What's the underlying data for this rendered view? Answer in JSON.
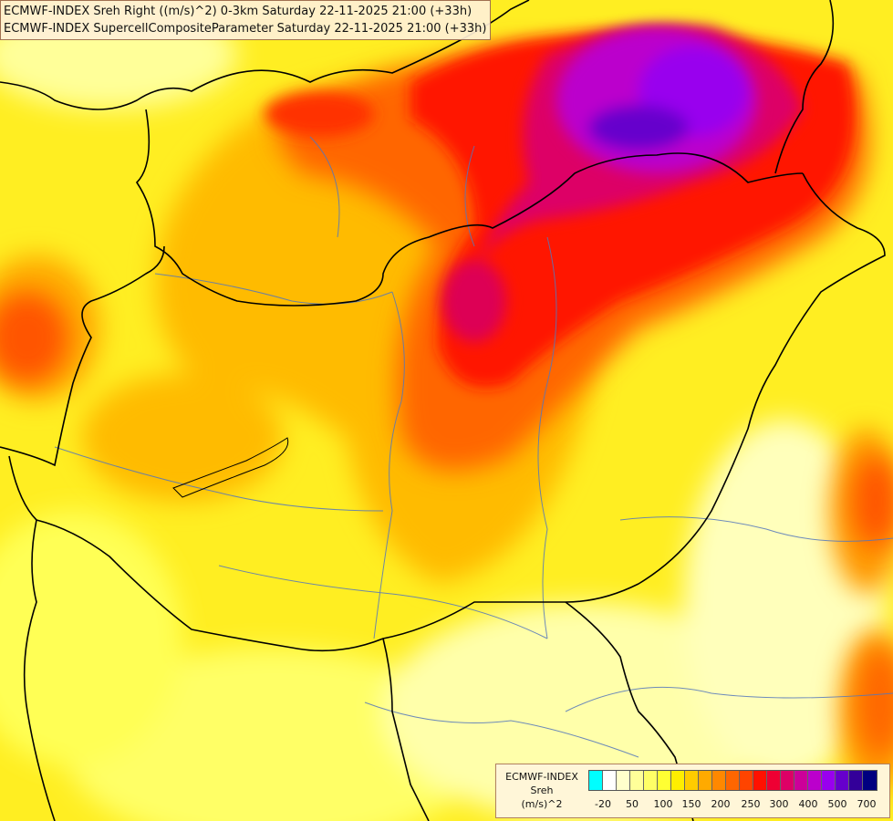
{
  "header": {
    "line1": "ECMWF-INDEX Sreh Right ((m/s)^2) 0-3km Saturday 22-11-2025 21:00 (+33h)",
    "line2": "ECMWF-INDEX SupercellCompositeParameter Saturday 22-11-2025 21:00 (+33h)"
  },
  "legend": {
    "title": "ECMWF-INDEX",
    "field": "Sreh",
    "unit": "(m/s)^2",
    "colors": [
      "#00ffff",
      "#ffffff",
      "#ffffcc",
      "#ffff99",
      "#ffff66",
      "#ffff33",
      "#ffee00",
      "#ffcc00",
      "#ffaa00",
      "#ff8800",
      "#ff6600",
      "#ff4400",
      "#ff1100",
      "#ee0033",
      "#dd0066",
      "#cc0099",
      "#bb00cc",
      "#9900ee",
      "#6600cc",
      "#330099",
      "#000080"
    ],
    "ticks": [
      "-20",
      "50",
      "100",
      "150",
      "200",
      "250",
      "300",
      "400",
      "500",
      "700"
    ]
  }
}
